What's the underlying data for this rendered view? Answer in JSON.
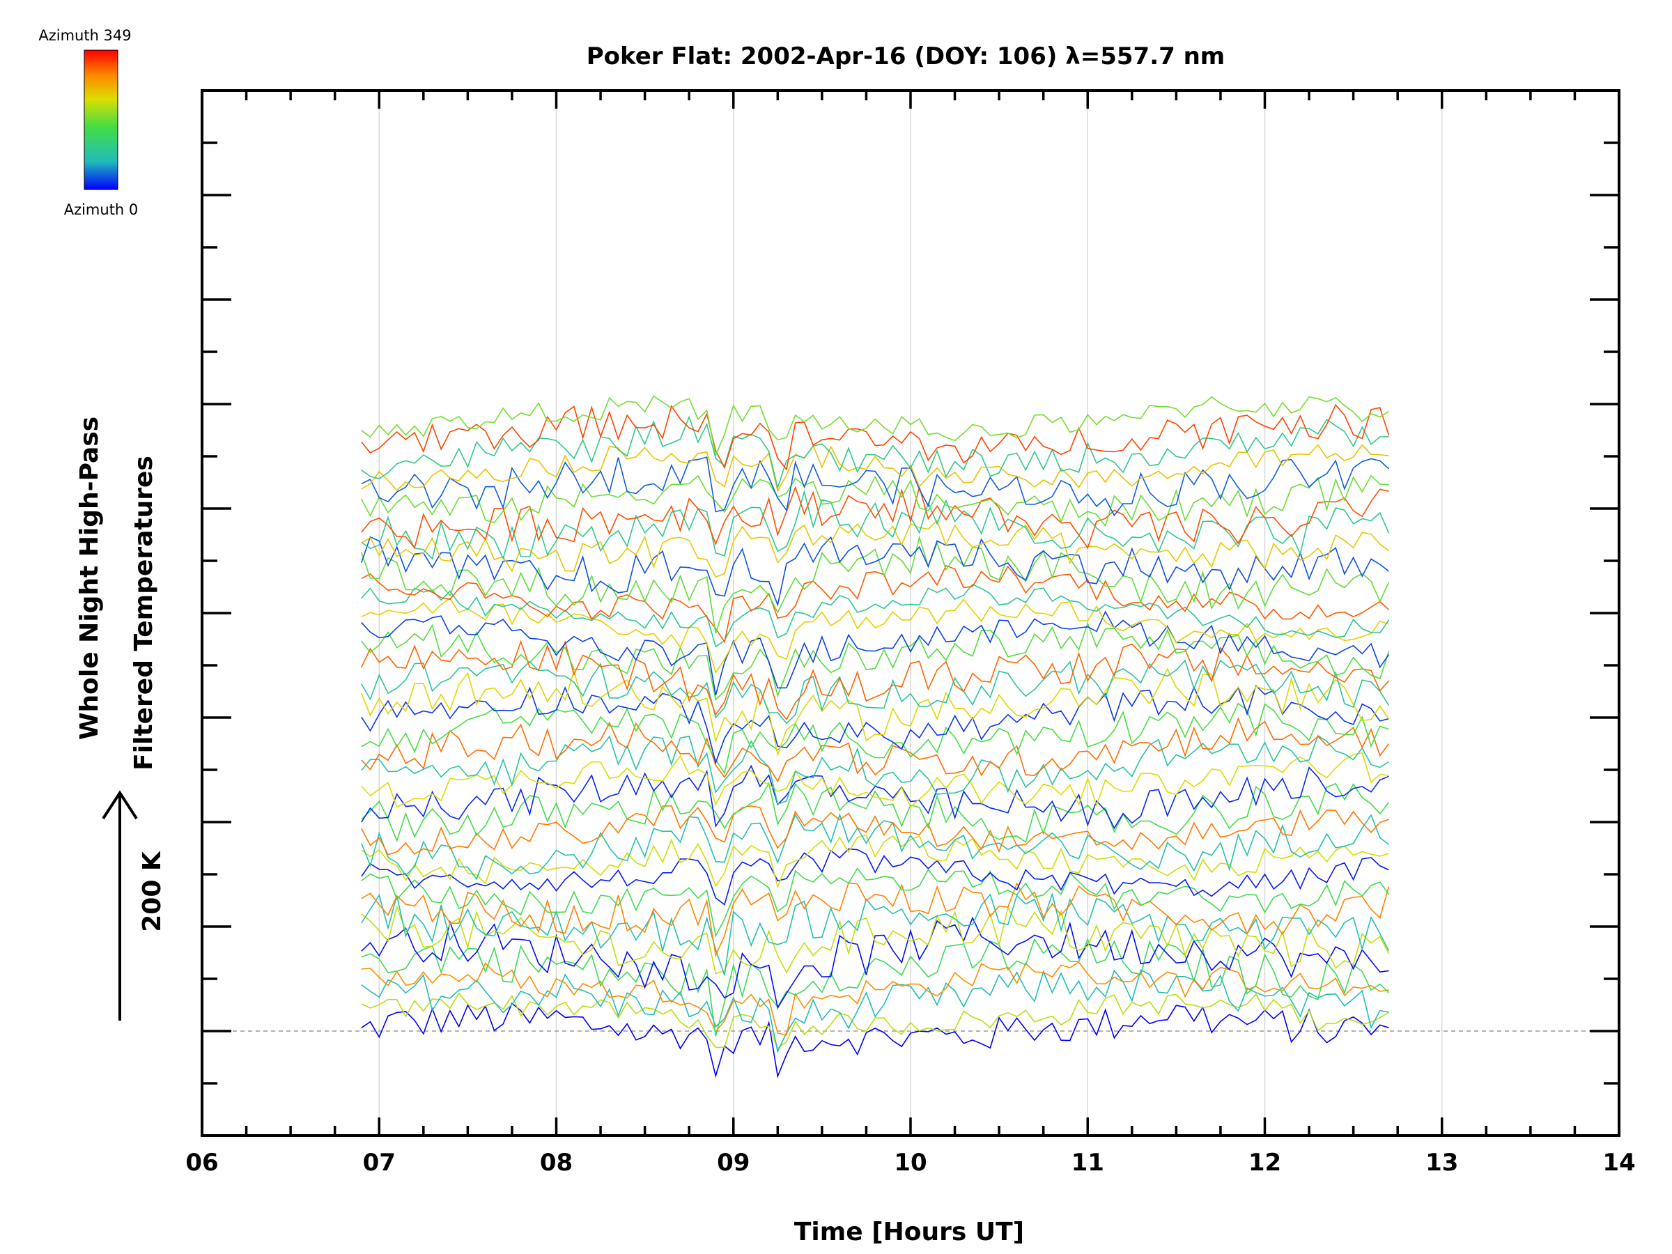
{
  "colorbar": {
    "top_label": "Azimuth 349",
    "bottom_label": "Azimuth 0",
    "colors": [
      "#ff0000",
      "#ff8800",
      "#dddd00",
      "#44dd44",
      "#22bbbb",
      "#0000ff"
    ]
  },
  "chart_data": {
    "type": "line",
    "title": "Poker Flat: 2002-Apr-16 (DOY: 106) λ=557.7 nm",
    "xlabel": "Time [Hours UT]",
    "ylabel_line1": "Whole Night High-Pass",
    "ylabel_line2": "Filtered Temperatures",
    "scale_label": "200 K",
    "scale_value_K": 200,
    "xlim": [
      6,
      14
    ],
    "x_ticks": [
      "06",
      "07",
      "08",
      "09",
      "10",
      "11",
      "12",
      "13",
      "14"
    ],
    "ylim": [
      -200,
      1800
    ],
    "grid_x": true,
    "reference_line_y": 0,
    "time_range": [
      6.9,
      12.7
    ],
    "series_offset_K": 30,
    "series_count": 40,
    "azimuth_range": [
      0,
      349
    ],
    "common_dips": [
      {
        "time": 8.92,
        "depth_K": 75
      },
      {
        "time": 9.27,
        "depth_K": 65
      }
    ],
    "note_values": "Stacked filtered temperature perturbations, one trace per azimuth, offset vertically; colour encodes azimuth"
  }
}
